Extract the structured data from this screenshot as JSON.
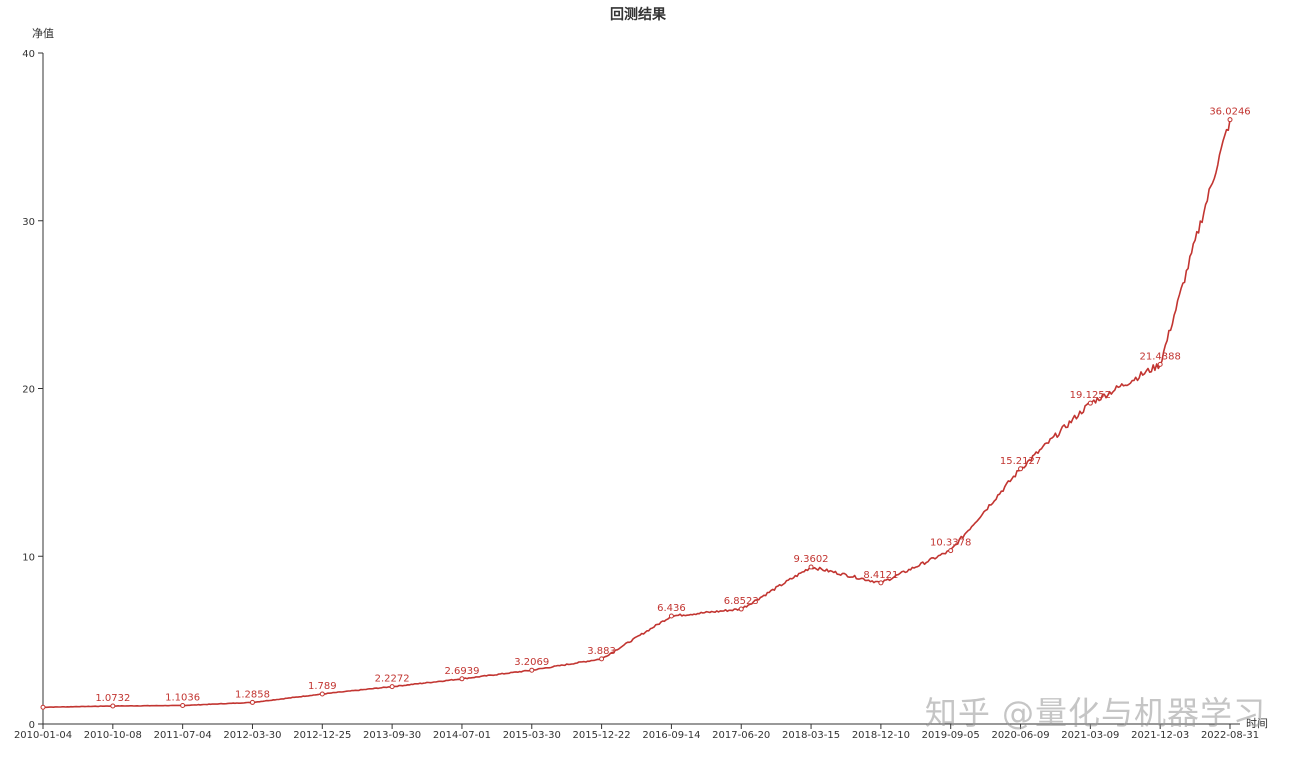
{
  "colors": {
    "series": "#c23531",
    "axis": "#333333",
    "text": "#333333"
  },
  "watermark": "知乎 @量化与机器学习",
  "chart_data": {
    "type": "line",
    "title": "回测结果",
    "xlabel": "时间",
    "ylabel": "净值",
    "ylim": [
      0,
      40
    ],
    "yticks": [
      0,
      10,
      20,
      30,
      40
    ],
    "grid": false,
    "legend": "none",
    "x": [
      "2010-01-04",
      "2010-10-08",
      "2011-07-04",
      "2012-03-30",
      "2012-12-25",
      "2013-09-30",
      "2014-07-01",
      "2015-03-30",
      "2015-12-22",
      "2016-09-14",
      "2017-06-20",
      "2018-03-15",
      "2018-12-10",
      "2019-09-05",
      "2020-06-09",
      "2021-03-09",
      "2021-12-03",
      "2022-08-31"
    ],
    "series": [
      {
        "values": [
          1.0,
          1.0732,
          1.1036,
          1.2858,
          1.789,
          2.2272,
          2.6939,
          3.2069,
          3.883,
          6.436,
          6.8523,
          9.3602,
          8.4121,
          10.3378,
          15.2127,
          19.1252,
          21.4388,
          36.0246
        ]
      }
    ],
    "labels": [
      "1.0732",
      "1.1036",
      "1.2858",
      "1.789",
      "2.2272",
      "2.6939",
      "3.2069",
      "3.883",
      "6.436",
      "6.8523",
      "9.3602",
      "8.4121",
      "10.3378",
      "15.2127",
      "19.1252",
      "21.4388",
      "36.0246"
    ]
  }
}
